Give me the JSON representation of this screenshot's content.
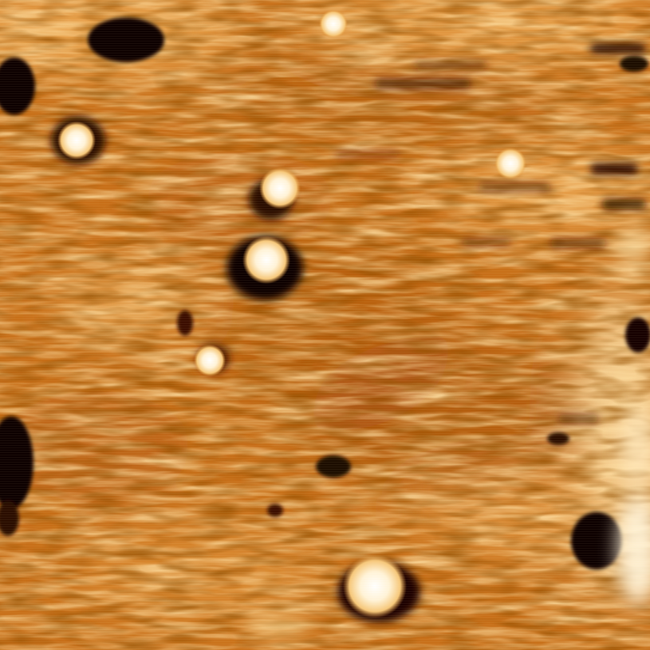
{
  "image": {
    "kind": "scanning-probe-microscopy-topograph",
    "colormap": "afmhot",
    "palette": {
      "deep": "#000000",
      "dark": "#5a1e02",
      "mid": "#b85a10",
      "base": "#c8701a",
      "light": "#eba04a",
      "bright": "#fbd995",
      "peak": "#ffffff"
    }
  }
}
